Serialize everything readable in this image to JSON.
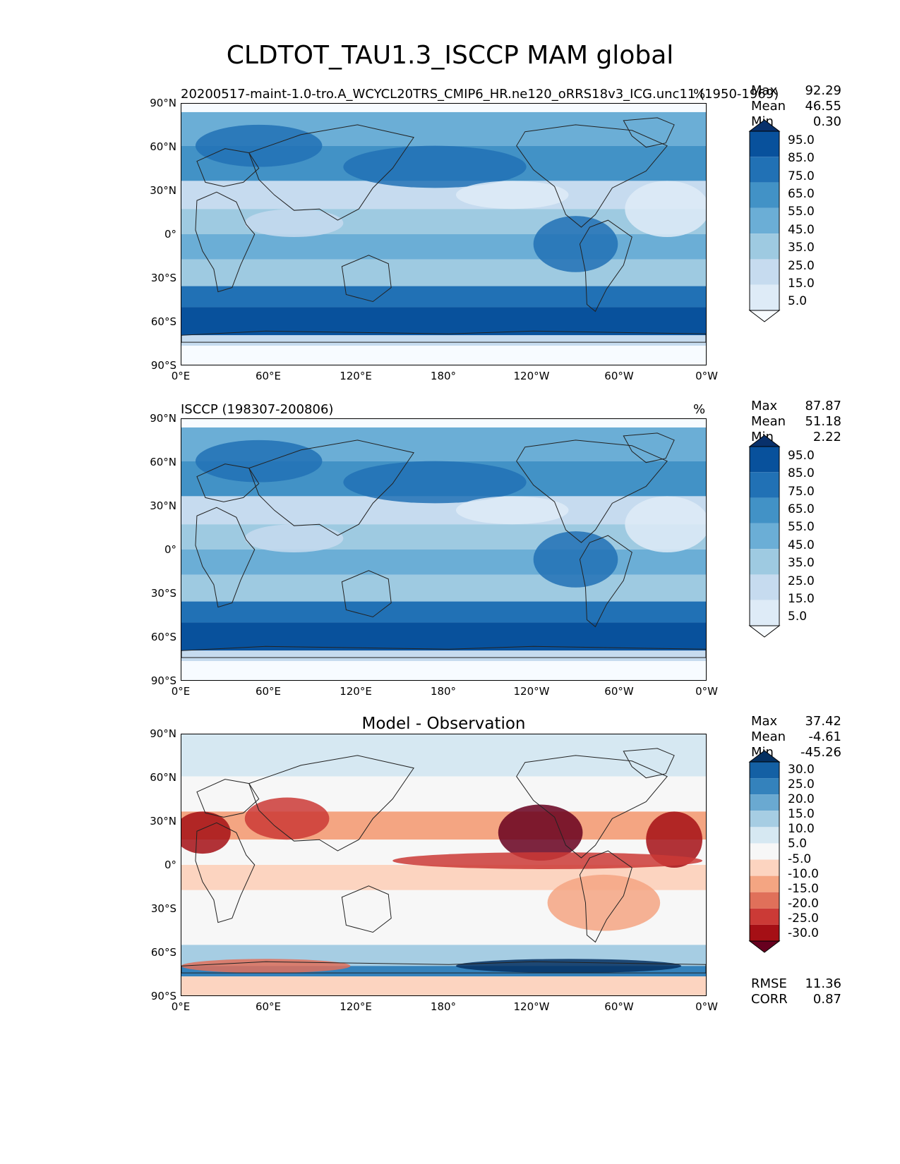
{
  "title": "CLDTOT_TAU1.3_ISCCP MAM global",
  "chart_data": [
    {
      "type": "heatmap",
      "title": "20200517-maint-1.0-tro.A_WCYCL20TRS_CMIP6_HR.ne120_oRRS18v3_ICG.unc11 (1950-1969)",
      "units": "%",
      "stats": {
        "max": "92.29",
        "mean": "46.55",
        "min": "0.30"
      },
      "xlim": [
        0,
        360
      ],
      "ylim": [
        -90,
        90
      ],
      "x_ticks": [
        "0°E",
        "60°E",
        "120°E",
        "180°",
        "120°W",
        "60°W",
        "0°W"
      ],
      "y_ticks": [
        "90°N",
        "60°N",
        "30°N",
        "0°",
        "30°S",
        "60°S",
        "90°S"
      ],
      "colorbar_labels": [
        "95.0",
        "85.0",
        "75.0",
        "65.0",
        "55.0",
        "45.0",
        "35.0",
        "25.0",
        "15.0",
        "5.0"
      ],
      "colormap": [
        "#f7fbff",
        "#deebf7",
        "#c6dbef",
        "#9ecae1",
        "#6baed6",
        "#4292c6",
        "#2171b5",
        "#08519c",
        "#08306b"
      ]
    },
    {
      "type": "heatmap",
      "title": "ISCCP (198307-200806)",
      "units": "%",
      "stats": {
        "max": "87.87",
        "mean": "51.18",
        "min": "2.22"
      },
      "xlim": [
        0,
        360
      ],
      "ylim": [
        -90,
        90
      ],
      "x_ticks": [
        "0°E",
        "60°E",
        "120°E",
        "180°",
        "120°W",
        "60°W",
        "0°W"
      ],
      "y_ticks": [
        "90°N",
        "60°N",
        "30°N",
        "0°",
        "30°S",
        "60°S",
        "90°S"
      ],
      "colorbar_labels": [
        "95.0",
        "85.0",
        "75.0",
        "65.0",
        "55.0",
        "45.0",
        "35.0",
        "25.0",
        "15.0",
        "5.0"
      ],
      "colormap": [
        "#f7fbff",
        "#deebf7",
        "#c6dbef",
        "#9ecae1",
        "#6baed6",
        "#4292c6",
        "#2171b5",
        "#08519c",
        "#08306b"
      ]
    },
    {
      "type": "heatmap",
      "title": "Model - Observation",
      "units": "",
      "stats": {
        "max": "37.42",
        "mean": "-4.61",
        "min": "-45.26"
      },
      "rmse": "11.36",
      "corr": "0.87",
      "xlim": [
        0,
        360
      ],
      "ylim": [
        -90,
        90
      ],
      "x_ticks": [
        "0°E",
        "60°E",
        "120°E",
        "180°",
        "120°W",
        "60°W",
        "0°W"
      ],
      "y_ticks": [
        "90°N",
        "60°N",
        "30°N",
        "0°",
        "30°S",
        "60°S",
        "90°S"
      ],
      "colorbar_labels": [
        "30.0",
        "25.0",
        "20.0",
        "15.0",
        "10.0",
        "5.0",
        "-5.0",
        "-10.0",
        "-15.0",
        "-20.0",
        "-25.0",
        "-30.0"
      ],
      "colormap": [
        "#67001f",
        "#a50f15",
        "#cb3a36",
        "#e0705a",
        "#f4a582",
        "#fcd4c0",
        "#f7f7f7",
        "#d6e8f2",
        "#a6cde3",
        "#6aa9d1",
        "#3482bc",
        "#1460a4",
        "#053061"
      ]
    }
  ],
  "labels": {
    "max": "Max",
    "mean": "Mean",
    "min": "Min",
    "rmse": "RMSE",
    "corr": "CORR"
  }
}
